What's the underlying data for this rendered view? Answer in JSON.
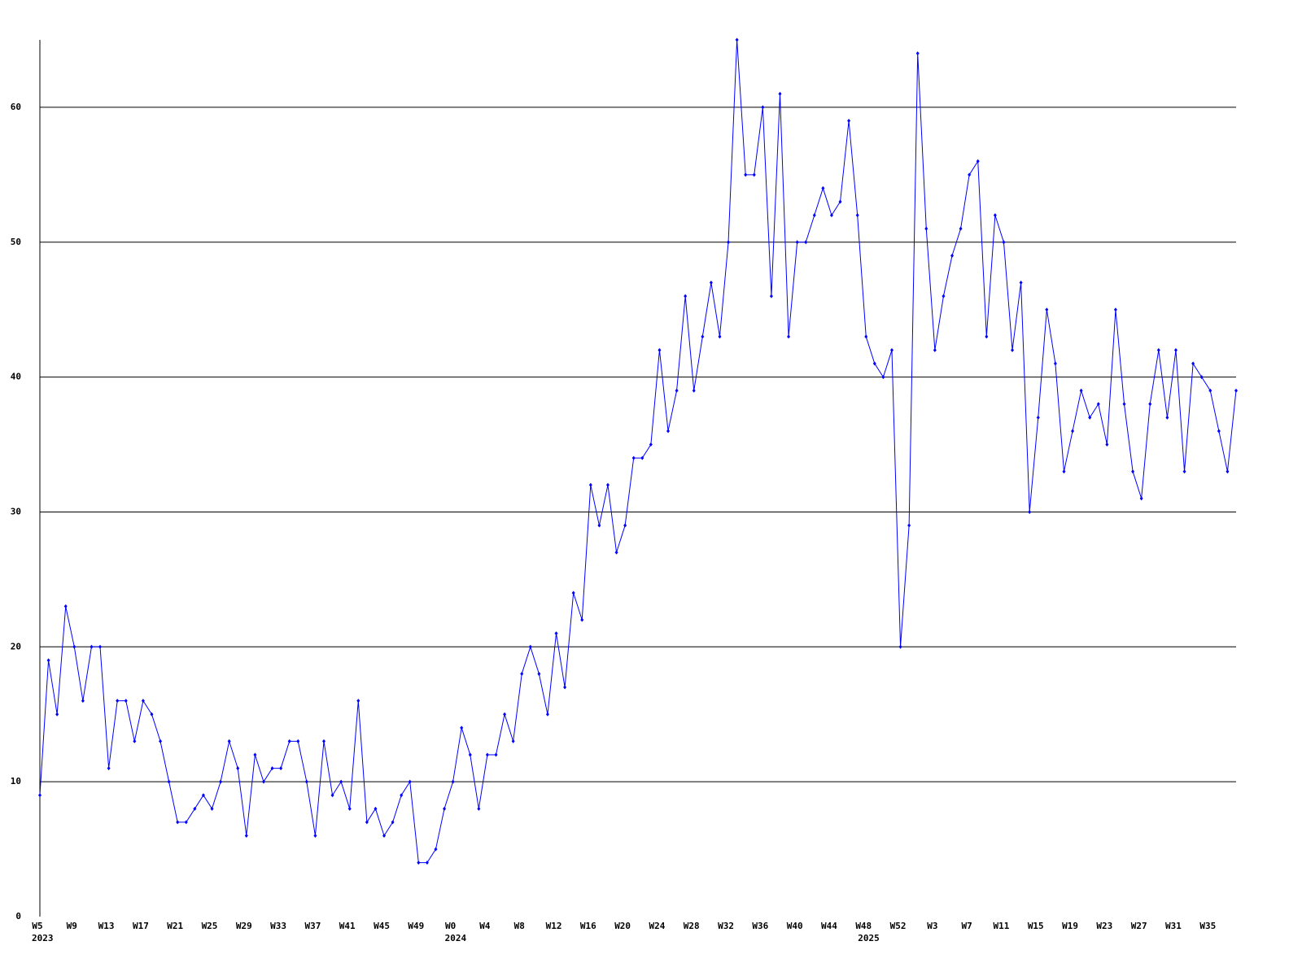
{
  "chart_data": {
    "type": "line",
    "categories": [
      "W5",
      null,
      null,
      null,
      "W9",
      null,
      null,
      null,
      "W13",
      null,
      null,
      null,
      "W17",
      null,
      null,
      null,
      "W21",
      null,
      null,
      null,
      "W25",
      null,
      null,
      null,
      "W29",
      null,
      null,
      null,
      "W33",
      null,
      null,
      null,
      "W37",
      null,
      null,
      null,
      "W41",
      null,
      null,
      null,
      "W45",
      null,
      null,
      null,
      "W49",
      null,
      null,
      null,
      "W0",
      null,
      null,
      null,
      "W4",
      null,
      null,
      null,
      "W8",
      null,
      null,
      null,
      "W12",
      null,
      null,
      null,
      "W16",
      null,
      null,
      null,
      "W20",
      null,
      null,
      null,
      "W24",
      null,
      null,
      null,
      "W28",
      null,
      null,
      null,
      "W32",
      null,
      null,
      null,
      "W36",
      null,
      null,
      null,
      "W40",
      null,
      null,
      null,
      "W44",
      null,
      null,
      null,
      "W48",
      null,
      null,
      null,
      "W52",
      null,
      null,
      null,
      "W3",
      null,
      null,
      null,
      "W7",
      null,
      null,
      null,
      "W11",
      null,
      null,
      null,
      "W15",
      null,
      null,
      null,
      "W19",
      null,
      null,
      null,
      "W23",
      null,
      null,
      null,
      "W27",
      null,
      null,
      null,
      "W31",
      null,
      null,
      null,
      "W35",
      null,
      null,
      null
    ],
    "years": [
      "2023",
      null,
      null,
      null,
      null,
      null,
      null,
      null,
      null,
      null,
      null,
      null,
      null,
      null,
      null,
      null,
      null,
      null,
      null,
      null,
      null,
      null,
      null,
      null,
      null,
      null,
      null,
      null,
      null,
      null,
      null,
      null,
      null,
      null,
      null,
      null,
      null,
      null,
      null,
      null,
      null,
      null,
      null,
      null,
      null,
      null,
      null,
      null,
      "2024",
      null,
      null,
      null,
      null,
      null,
      null,
      null,
      null,
      null,
      null,
      null,
      null,
      null,
      null,
      null,
      null,
      null,
      null,
      null,
      null,
      null,
      null,
      null,
      null,
      null,
      null,
      null,
      null,
      null,
      null,
      null,
      null,
      null,
      null,
      null,
      null,
      null,
      null,
      null,
      null,
      null,
      null,
      null,
      null,
      null,
      null,
      null,
      "2025",
      null,
      null,
      null,
      null,
      null,
      null,
      null,
      null,
      null,
      null,
      null,
      null,
      null,
      null,
      null,
      null,
      null,
      null,
      null,
      null,
      null,
      null,
      null,
      null,
      null,
      null,
      null,
      null,
      null,
      null,
      null,
      null,
      null,
      null,
      null,
      null,
      null,
      null,
      null
    ],
    "values": [
      9,
      19,
      15,
      23,
      20,
      16,
      20,
      20,
      11,
      16,
      16,
      13,
      16,
      15,
      13,
      10,
      7,
      7,
      8,
      9,
      8,
      10,
      13,
      11,
      6,
      12,
      10,
      11,
      11,
      13,
      13,
      10,
      6,
      13,
      9,
      10,
      8,
      16,
      7,
      8,
      6,
      7,
      9,
      10,
      4,
      4,
      5,
      8,
      10,
      14,
      12,
      8,
      12,
      12,
      15,
      13,
      18,
      20,
      18,
      15,
      21,
      17,
      24,
      22,
      32,
      29,
      32,
      27,
      29,
      34,
      34,
      35,
      42,
      36,
      39,
      46,
      39,
      43,
      47,
      43,
      50,
      65,
      55,
      55,
      60,
      46,
      61,
      43,
      50,
      50,
      52,
      54,
      52,
      53,
      59,
      52,
      43,
      41,
      40,
      42,
      20,
      29,
      64,
      51,
      42,
      46,
      49,
      51,
      55,
      56,
      43,
      52,
      50,
      42,
      47,
      30,
      37,
      45,
      41,
      33,
      36,
      39,
      37,
      38,
      35,
      45,
      38,
      33,
      31,
      38,
      42,
      37,
      42,
      33,
      41,
      40,
      39,
      36,
      33,
      39
    ],
    "color": "#0000ff",
    "ylim": [
      0,
      65
    ],
    "yticks": [
      0,
      10,
      20,
      30,
      40,
      50,
      60
    ],
    "grid": true
  }
}
